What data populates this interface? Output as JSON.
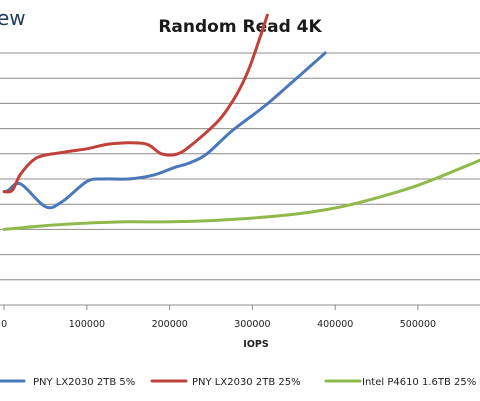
{
  "brand": {
    "text": "ew"
  },
  "chart_data": {
    "type": "line",
    "title": "Random Read 4K",
    "xlabel": "IOPS",
    "ylabel": "",
    "xlim": [
      -5000,
      575000
    ],
    "ylim": [
      0,
      11
    ],
    "x_ticks": [
      0,
      100000,
      200000,
      300000,
      400000,
      500000
    ],
    "x_tick_labels": [
      "0",
      "100000",
      "200000",
      "300000",
      "400000",
      "500000"
    ],
    "y_gridlines": [
      1,
      2,
      3,
      4,
      5,
      6,
      7,
      8,
      9,
      10
    ],
    "grid": true,
    "legend_position": "bottom",
    "series": [
      {
        "name": "PNY LX2030 2TB 5%",
        "color": "#4a78b8",
        "x": [
          0,
          5000,
          20000,
          50000,
          70000,
          100000,
          120000,
          150000,
          180000,
          205000,
          225000,
          245000,
          275000,
          315000,
          350000,
          388000
        ],
        "y": [
          4.5,
          4.55,
          4.8,
          3.9,
          4.1,
          4.9,
          5.0,
          5.0,
          5.15,
          5.45,
          5.65,
          6.0,
          6.9,
          7.9,
          8.9,
          10.0
        ]
      },
      {
        "name": "PNY LX2030 2TB 25%",
        "color": "#c0413b",
        "x": [
          0,
          10000,
          20000,
          40000,
          70000,
          100000,
          130000,
          170000,
          190000,
          210000,
          230000,
          260000,
          280000,
          295000,
          310000,
          318000
        ],
        "y": [
          4.5,
          4.55,
          5.2,
          5.85,
          6.05,
          6.2,
          6.4,
          6.4,
          6.0,
          6.0,
          6.45,
          7.35,
          8.3,
          9.3,
          10.7,
          11.5
        ]
      },
      {
        "name": "Intel P4610 1.6TB 25%",
        "color": "#90b94b",
        "x": [
          0,
          50000,
          100000,
          150000,
          200000,
          250000,
          300000,
          350000,
          400000,
          450000,
          500000,
          550000,
          575000
        ],
        "y": [
          3.0,
          3.15,
          3.25,
          3.3,
          3.3,
          3.35,
          3.45,
          3.6,
          3.85,
          4.25,
          4.75,
          5.4,
          5.75
        ]
      }
    ]
  }
}
